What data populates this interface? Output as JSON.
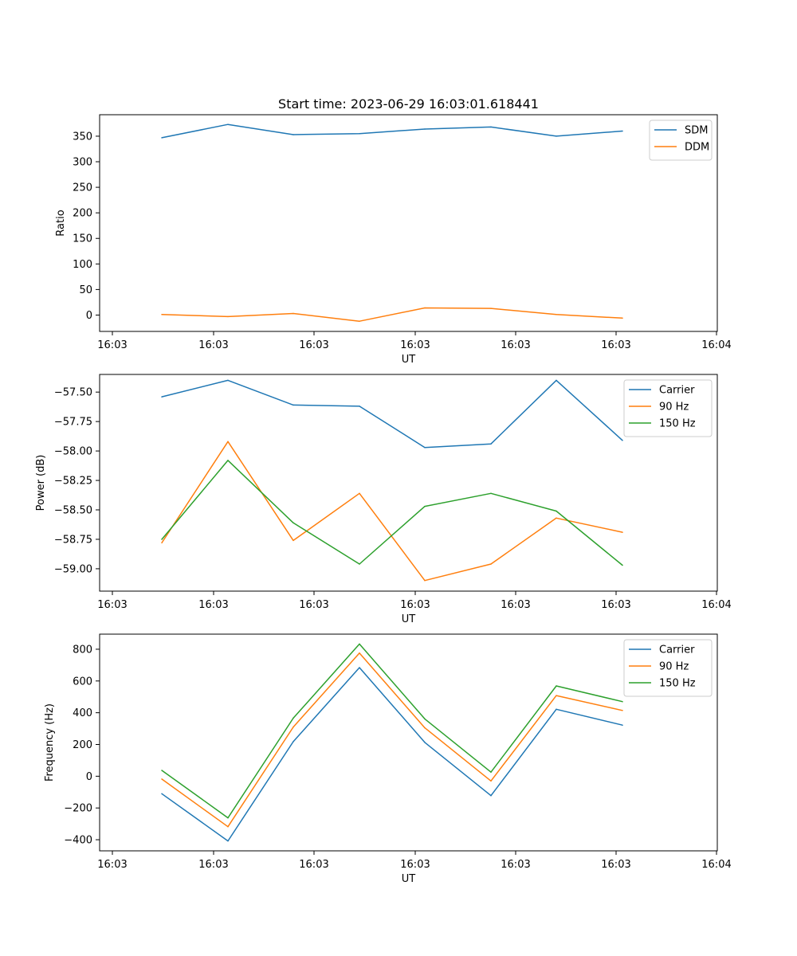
{
  "title": "Start time: 2023-06-29 16:03:01.618441",
  "chart_data": [
    {
      "type": "line",
      "xlabel": "UT",
      "ylabel": "Ratio",
      "ylim": [
        -32,
        392
      ],
      "yticks": [
        0,
        50,
        100,
        150,
        200,
        250,
        300,
        350
      ],
      "yticklabels": [
        "0",
        "50",
        "100",
        "150",
        "200",
        "250",
        "300",
        "350"
      ],
      "xtick_labels": [
        "16:03",
        "16:03",
        "16:03",
        "16:03",
        "16:03",
        "16:03",
        "16:04"
      ],
      "x": [
        1,
        2,
        3,
        4,
        5,
        6,
        7,
        8
      ],
      "legend": "top-right",
      "grid": false,
      "series": [
        {
          "name": "SDM",
          "color": "#1f77b4",
          "values": [
            347,
            373,
            353,
            355,
            364,
            368,
            350,
            360
          ]
        },
        {
          "name": "DDM",
          "color": "#ff7f0e",
          "values": [
            1,
            -3,
            3,
            -12,
            14,
            13,
            1,
            -6
          ]
        }
      ]
    },
    {
      "type": "line",
      "xlabel": "UT",
      "ylabel": "Power (dB)",
      "ylim": [
        -59.19,
        -57.35
      ],
      "yticks": [
        -59.0,
        -58.75,
        -58.5,
        -58.25,
        -58.0,
        -57.75,
        -57.5
      ],
      "yticklabels": [
        "−59.00",
        "−58.75",
        "−58.50",
        "−58.25",
        "−58.00",
        "−57.75",
        "−57.50"
      ],
      "xtick_labels": [
        "16:03",
        "16:03",
        "16:03",
        "16:03",
        "16:03",
        "16:03",
        "16:04"
      ],
      "x": [
        1,
        2,
        3,
        4,
        5,
        6,
        7,
        8
      ],
      "legend": "top-right",
      "grid": false,
      "series": [
        {
          "name": "Carrier",
          "color": "#1f77b4",
          "values": [
            -57.54,
            -57.4,
            -57.61,
            -57.62,
            -57.97,
            -57.94,
            -57.4,
            -57.91
          ]
        },
        {
          "name": "90 Hz",
          "color": "#ff7f0e",
          "values": [
            -58.78,
            -57.92,
            -58.76,
            -58.36,
            -59.1,
            -58.96,
            -58.57,
            -58.69
          ]
        },
        {
          "name": "150 Hz",
          "color": "#2ca02c",
          "values": [
            -58.75,
            -58.08,
            -58.61,
            -58.96,
            -58.47,
            -58.36,
            -58.51,
            -58.97
          ]
        }
      ]
    },
    {
      "type": "line",
      "xlabel": "UT",
      "ylabel": "Frequency (Hz)",
      "ylim": [
        -470,
        895
      ],
      "yticks": [
        -400,
        -200,
        0,
        200,
        400,
        600,
        800
      ],
      "yticklabels": [
        "−400",
        "−200",
        "0",
        "200",
        "400",
        "600",
        "800"
      ],
      "xtick_labels": [
        "16:03",
        "16:03",
        "16:03",
        "16:03",
        "16:03",
        "16:03",
        "16:04"
      ],
      "x": [
        1,
        2,
        3,
        4,
        5,
        6,
        7,
        8
      ],
      "legend": "top-right",
      "grid": false,
      "series": [
        {
          "name": "Carrier",
          "color": "#1f77b4",
          "values": [
            -110,
            -408,
            218,
            684,
            213,
            -122,
            422,
            322
          ]
        },
        {
          "name": "90 Hz",
          "color": "#ff7f0e",
          "values": [
            -18,
            -318,
            310,
            776,
            305,
            -30,
            508,
            414
          ]
        },
        {
          "name": "150 Hz",
          "color": "#2ca02c",
          "values": [
            37,
            -262,
            366,
            833,
            361,
            26,
            569,
            470
          ]
        }
      ]
    }
  ]
}
